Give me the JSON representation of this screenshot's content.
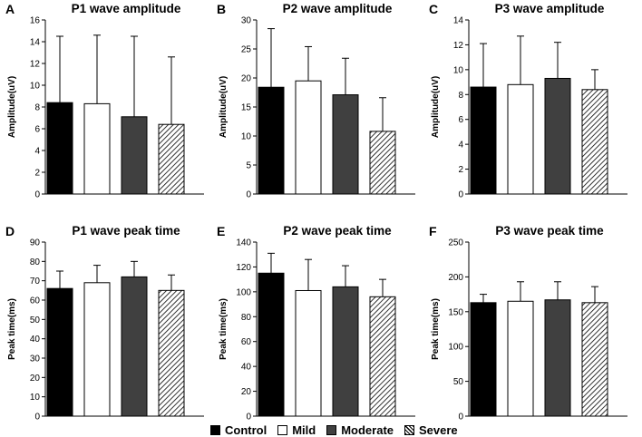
{
  "colors": {
    "control": "#000000",
    "mild": "#ffffff",
    "moderate": "#404040",
    "severe": "hatch"
  },
  "chart_data": [
    {
      "type": "bar",
      "panel": "A",
      "title": "P1 wave amplitude",
      "ylabel": "Amplitude(uV)",
      "xlabel": "",
      "categories": [
        "Control",
        "Mild",
        "Moderate",
        "Severe"
      ],
      "values": [
        8.4,
        8.3,
        7.1,
        6.4
      ],
      "errors": [
        6.1,
        6.3,
        7.4,
        6.2
      ],
      "ylim": [
        0,
        16
      ],
      "yticks": [
        "0",
        "2",
        "4",
        "6",
        "8",
        "10",
        "12",
        "14",
        "16"
      ]
    },
    {
      "type": "bar",
      "panel": "B",
      "title": "P2 wave amplitude",
      "ylabel": "Amplitude(uV)",
      "xlabel": "",
      "categories": [
        "Control",
        "Mild",
        "Moderate",
        "Severe"
      ],
      "values": [
        18.4,
        19.5,
        17.1,
        10.8
      ],
      "errors": [
        10.1,
        5.9,
        6.3,
        5.8
      ],
      "ylim": [
        0,
        30
      ],
      "yticks": [
        "0",
        "5",
        "10",
        "15",
        "20",
        "25",
        "30"
      ]
    },
    {
      "type": "bar",
      "panel": "C",
      "title": "P3 wave amplitude",
      "ylabel": "Amplitude(uV)",
      "xlabel": "",
      "categories": [
        "Control",
        "Mild",
        "Moderate",
        "Severe"
      ],
      "values": [
        8.6,
        8.8,
        9.3,
        8.4
      ],
      "errors": [
        3.5,
        3.9,
        2.9,
        1.6
      ],
      "ylim": [
        0,
        14
      ],
      "yticks": [
        "0",
        "2",
        "4",
        "6",
        "8",
        "10",
        "12",
        "14"
      ]
    },
    {
      "type": "bar",
      "panel": "D",
      "title": "P1 wave peak time",
      "ylabel": "Peak time(ms)",
      "xlabel": "",
      "categories": [
        "Control",
        "Mild",
        "Moderate",
        "Severe"
      ],
      "values": [
        66,
        69,
        72,
        65
      ],
      "errors": [
        9,
        9,
        8,
        8
      ],
      "ylim": [
        0,
        90
      ],
      "yticks": [
        "0",
        "10",
        "20",
        "30",
        "40",
        "50",
        "60",
        "70",
        "80",
        "90"
      ]
    },
    {
      "type": "bar",
      "panel": "E",
      "title": "P2 wave peak time",
      "ylabel": "Peak time(ms)",
      "xlabel": "",
      "categories": [
        "Control",
        "Mild",
        "Moderate",
        "Severe"
      ],
      "values": [
        115,
        101,
        104,
        96
      ],
      "errors": [
        16,
        25,
        17,
        14
      ],
      "ylim": [
        0,
        140
      ],
      "yticks": [
        "0",
        "20",
        "40",
        "60",
        "80",
        "100",
        "120",
        "140"
      ]
    },
    {
      "type": "bar",
      "panel": "F",
      "title": "P3 wave peak time",
      "ylabel": "Peak time(ms)",
      "xlabel": "",
      "categories": [
        "Control",
        "Mild",
        "Moderate",
        "Severe"
      ],
      "values": [
        163,
        165,
        167,
        163
      ],
      "errors": [
        12,
        28,
        26,
        23
      ],
      "ylim": [
        0,
        250
      ],
      "yticks": [
        "0",
        "50",
        "100",
        "150",
        "200",
        "250"
      ]
    }
  ],
  "legend": [
    {
      "label": "Control",
      "style": "solid-black"
    },
    {
      "label": "Mild",
      "style": "white"
    },
    {
      "label": "Moderate",
      "style": "dark-gray"
    },
    {
      "label": "Severe",
      "style": "hatched"
    }
  ]
}
